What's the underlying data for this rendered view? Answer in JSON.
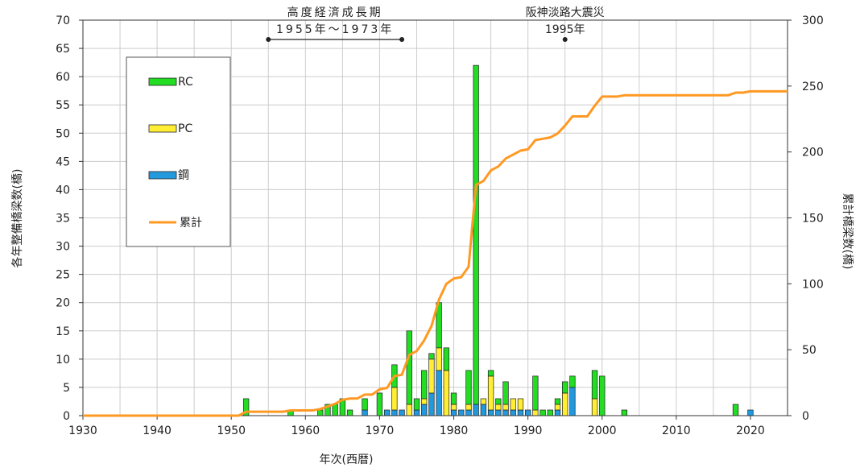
{
  "chart_data": {
    "type": "bar",
    "stacked": true,
    "ylabel": "各年整備橋梁数(橋)",
    "y2label": "累計橋梁数(橋)",
    "xlabel": "年次(西暦)",
    "xlim": [
      1930,
      2025
    ],
    "ylim": [
      0,
      70
    ],
    "y2lim": [
      0,
      300
    ],
    "xticks": [
      1930,
      1940,
      1950,
      1960,
      1970,
      1980,
      1990,
      2000,
      2010,
      2020
    ],
    "yticks": [
      0,
      5,
      10,
      15,
      20,
      25,
      30,
      35,
      40,
      45,
      50,
      55,
      60,
      65,
      70
    ],
    "y2ticks": [
      0,
      50,
      100,
      150,
      200,
      250,
      300
    ],
    "grid": true,
    "legend_position": "top-left",
    "colors": {
      "RC": "#22dd22",
      "PC": "#ffee33",
      "steel": "#2299dd",
      "cumulative": "#ff9922"
    },
    "legend": [
      {
        "key": "RC",
        "label": "RC",
        "kind": "bar"
      },
      {
        "key": "PC",
        "label": "PC",
        "kind": "bar"
      },
      {
        "key": "steel",
        "label": "鋼",
        "kind": "bar"
      },
      {
        "key": "cumulative",
        "label": "累計",
        "kind": "line"
      }
    ],
    "bars": [
      {
        "year": 1952,
        "steel": 0,
        "PC": 0,
        "RC": 3
      },
      {
        "year": 1958,
        "steel": 0,
        "PC": 0,
        "RC": 1
      },
      {
        "year": 1962,
        "steel": 0,
        "PC": 0,
        "RC": 1
      },
      {
        "year": 1963,
        "steel": 0,
        "PC": 0,
        "RC": 2
      },
      {
        "year": 1964,
        "steel": 0,
        "PC": 0,
        "RC": 2
      },
      {
        "year": 1965,
        "steel": 0,
        "PC": 0,
        "RC": 3
      },
      {
        "year": 1966,
        "steel": 0,
        "PC": 0,
        "RC": 1
      },
      {
        "year": 1968,
        "steel": 1,
        "PC": 0,
        "RC": 2
      },
      {
        "year": 1970,
        "steel": 0,
        "PC": 0,
        "RC": 4
      },
      {
        "year": 1971,
        "steel": 1,
        "PC": 0,
        "RC": 0
      },
      {
        "year": 1972,
        "steel": 1,
        "PC": 4,
        "RC": 4
      },
      {
        "year": 1973,
        "steel": 1,
        "PC": 0,
        "RC": 0
      },
      {
        "year": 1974,
        "steel": 0,
        "PC": 2,
        "RC": 13
      },
      {
        "year": 1975,
        "steel": 1,
        "PC": 0,
        "RC": 2
      },
      {
        "year": 1976,
        "steel": 2,
        "PC": 1,
        "RC": 5
      },
      {
        "year": 1977,
        "steel": 4,
        "PC": 6,
        "RC": 1
      },
      {
        "year": 1978,
        "steel": 8,
        "PC": 4,
        "RC": 8
      },
      {
        "year": 1979,
        "steel": 0,
        "PC": 8,
        "RC": 4
      },
      {
        "year": 1980,
        "steel": 1,
        "PC": 1,
        "RC": 2
      },
      {
        "year": 1981,
        "steel": 1,
        "PC": 0,
        "RC": 0
      },
      {
        "year": 1982,
        "steel": 1,
        "PC": 1,
        "RC": 6
      },
      {
        "year": 1983,
        "steel": 2,
        "PC": 0,
        "RC": 60
      },
      {
        "year": 1984,
        "steel": 2,
        "PC": 1,
        "RC": 0
      },
      {
        "year": 1985,
        "steel": 1,
        "PC": 6,
        "RC": 1
      },
      {
        "year": 1986,
        "steel": 1,
        "PC": 1,
        "RC": 1
      },
      {
        "year": 1987,
        "steel": 1,
        "PC": 1,
        "RC": 4
      },
      {
        "year": 1988,
        "steel": 1,
        "PC": 2,
        "RC": 0
      },
      {
        "year": 1989,
        "steel": 1,
        "PC": 2,
        "RC": 0
      },
      {
        "year": 1990,
        "steel": 1,
        "PC": 0,
        "RC": 0
      },
      {
        "year": 1991,
        "steel": 0,
        "PC": 1,
        "RC": 6
      },
      {
        "year": 1992,
        "steel": 0,
        "PC": 0,
        "RC": 1
      },
      {
        "year": 1993,
        "steel": 0,
        "PC": 0,
        "RC": 1
      },
      {
        "year": 1994,
        "steel": 1,
        "PC": 1,
        "RC": 1
      },
      {
        "year": 1995,
        "steel": 0,
        "PC": 4,
        "RC": 2
      },
      {
        "year": 1996,
        "steel": 5,
        "PC": 0,
        "RC": 2
      },
      {
        "year": 1999,
        "steel": 0,
        "PC": 3,
        "RC": 5
      },
      {
        "year": 2000,
        "steel": 0,
        "PC": 0,
        "RC": 7
      },
      {
        "year": 2003,
        "steel": 0,
        "PC": 0,
        "RC": 1
      },
      {
        "year": 2018,
        "steel": 0,
        "PC": 0,
        "RC": 2
      },
      {
        "year": 2020,
        "steel": 1,
        "PC": 0,
        "RC": 0
      }
    ],
    "cumulative": [
      [
        1930,
        0
      ],
      [
        1951,
        0
      ],
      [
        1952,
        3
      ],
      [
        1957,
        3
      ],
      [
        1958,
        4
      ],
      [
        1961,
        4
      ],
      [
        1962,
        5
      ],
      [
        1963,
        7
      ],
      [
        1964,
        9
      ],
      [
        1965,
        12
      ],
      [
        1966,
        13
      ],
      [
        1967,
        13
      ],
      [
        1968,
        16
      ],
      [
        1969,
        16
      ],
      [
        1970,
        20
      ],
      [
        1971,
        21
      ],
      [
        1972,
        30
      ],
      [
        1973,
        31
      ],
      [
        1974,
        46
      ],
      [
        1975,
        49
      ],
      [
        1976,
        57
      ],
      [
        1977,
        68
      ],
      [
        1978,
        88
      ],
      [
        1979,
        100
      ],
      [
        1980,
        104
      ],
      [
        1981,
        105
      ],
      [
        1982,
        113
      ],
      [
        1983,
        175
      ],
      [
        1984,
        178
      ],
      [
        1985,
        186
      ],
      [
        1986,
        189
      ],
      [
        1987,
        195
      ],
      [
        1988,
        198
      ],
      [
        1989,
        201
      ],
      [
        1990,
        202
      ],
      [
        1991,
        209
      ],
      [
        1992,
        210
      ],
      [
        1993,
        211
      ],
      [
        1994,
        214
      ],
      [
        1995,
        220
      ],
      [
        1996,
        227
      ],
      [
        1998,
        227
      ],
      [
        1999,
        235
      ],
      [
        2000,
        242
      ],
      [
        2002,
        242
      ],
      [
        2003,
        243
      ],
      [
        2017,
        243
      ],
      [
        2018,
        245
      ],
      [
        2019,
        245
      ],
      [
        2020,
        246
      ],
      [
        2025,
        246
      ]
    ],
    "annotations": [
      {
        "id": "era",
        "title": "高度経済成長期",
        "label": "1955年～1973年",
        "from": 1955,
        "to": 1973
      },
      {
        "id": "quake",
        "title": "阪神淡路大震災",
        "label": "1995年",
        "at": 1995
      }
    ]
  }
}
